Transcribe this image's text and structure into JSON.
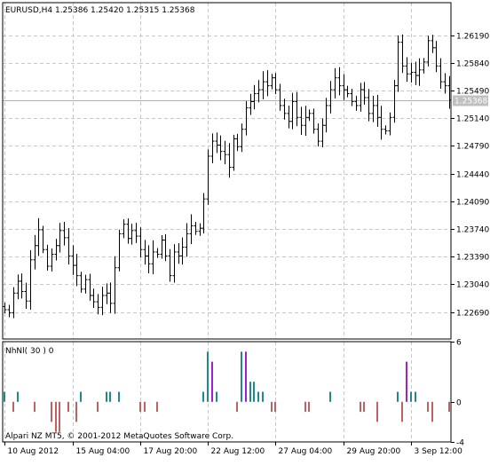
{
  "chart_data": [
    {
      "type": "candlestick",
      "symbol_line": "EURUSD,H4  1.25386 1.25420 1.25315 1.25368",
      "last_price": 1.25368,
      "last_price_label": "1.25368",
      "ylim": [
        1.2235,
        1.266
      ],
      "y_ticks": [
        1.2619,
        1.2584,
        1.2549,
        1.2514,
        1.2479,
        1.2444,
        1.2409,
        1.2374,
        1.2339,
        1.2304,
        1.2269
      ],
      "y_tick_labels": [
        "1.26190",
        "1.25840",
        "1.25490",
        "1.25140",
        "1.24790",
        "1.24440",
        "1.24090",
        "1.23740",
        "1.23390",
        "1.23040",
        "1.22690"
      ],
      "x_tick_labels": [
        "10 Aug 2012",
        "15 Aug 04:00",
        "17 Aug 20:00",
        "22 Aug 12:00",
        "27 Aug 04:00",
        "29 Aug 20:00",
        "3 Sep 12:00"
      ],
      "x_tick_bar_index": [
        0,
        16,
        32,
        48,
        64,
        80,
        96
      ],
      "bar_count": 106,
      "closes": [
        1.2272,
        1.2268,
        1.2293,
        1.2308,
        1.2295,
        1.2283,
        1.2335,
        1.2353,
        1.2373,
        1.2348,
        1.2327,
        1.2342,
        1.2353,
        1.2372,
        1.2363,
        1.234,
        1.2328,
        1.2315,
        1.2298,
        1.231,
        1.229,
        1.2282,
        1.2275,
        1.229,
        1.2293,
        1.228,
        1.2325,
        1.2368,
        1.238,
        1.2362,
        1.2372,
        1.2365,
        1.2348,
        1.234,
        1.233,
        1.2345,
        1.2342,
        1.236,
        1.234,
        1.2315,
        1.2345,
        1.234,
        1.2351,
        1.2368,
        1.2378,
        1.2371,
        1.2375,
        1.2412,
        1.2466,
        1.2485,
        1.248,
        1.2472,
        1.2468,
        1.2452,
        1.2488,
        1.2478,
        1.25,
        1.2527,
        1.2535,
        1.2545,
        1.255,
        1.256,
        1.2555,
        1.2565,
        1.255,
        1.253,
        1.252,
        1.251,
        1.2535,
        1.2515,
        1.2505,
        1.2515,
        1.252,
        1.25,
        1.2485,
        1.2505,
        1.253,
        1.255,
        1.2565,
        1.2555,
        1.255,
        1.2545,
        1.2535,
        1.253,
        1.255,
        1.254,
        1.252,
        1.253,
        1.2515,
        1.25,
        1.2498,
        1.2515,
        1.2555,
        1.261,
        1.258,
        1.257,
        1.2572,
        1.2568,
        1.2575,
        1.2585,
        1.2612,
        1.2603,
        1.258,
        1.256,
        1.2555,
        1.2537
      ]
    },
    {
      "type": "bar",
      "indicator_label": "NhNl( 30 ) 0",
      "ylim": [
        -4,
        6
      ],
      "y_ticks": [
        6,
        0,
        -4
      ],
      "y_tick_labels": [
        "6",
        "0",
        "-4"
      ],
      "values": [
        1,
        0,
        -1,
        1,
        0,
        0,
        0,
        -1,
        0,
        0,
        0,
        -2,
        -3,
        -3,
        0,
        -1,
        0,
        -2,
        1,
        0,
        0,
        0,
        -1,
        0,
        1,
        1,
        0,
        1,
        0,
        0,
        0,
        0,
        -1,
        -1,
        0,
        0,
        -1,
        0,
        0,
        0,
        0,
        0,
        0,
        0,
        0,
        0,
        0,
        1,
        5,
        4,
        1,
        0,
        0,
        0,
        0,
        -1,
        5,
        5,
        2,
        2,
        1,
        1,
        0,
        -1,
        -1,
        0,
        0,
        0,
        0,
        0,
        0,
        -1,
        -1,
        0,
        0,
        0,
        0,
        1,
        0,
        0,
        0,
        0,
        0,
        0,
        -1,
        -1,
        0,
        0,
        -2,
        0,
        0,
        0,
        0,
        1,
        -2,
        4,
        1,
        1,
        0,
        0,
        -1,
        -2,
        0,
        0,
        0,
        -1
      ],
      "colors": {
        "teal": "#1e8a8a",
        "purple": "#a020d0",
        "rose": "#c06060"
      },
      "footer_text": "Alpari NZ MT5, © 2001-2012 MetaQuotes Software Corp."
    }
  ]
}
